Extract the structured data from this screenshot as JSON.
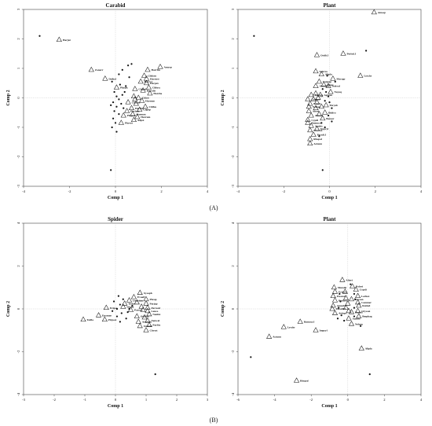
{
  "panel_labels": [
    "(A)",
    "(B)"
  ],
  "chart_data": [
    {
      "type": "scatter",
      "title": "Carabid",
      "xlabel": "Comp 1",
      "ylabel": "Comp 2",
      "xlim": [
        -4,
        4
      ],
      "ylim": [
        -3,
        3
      ],
      "xticks": [
        -4,
        -2,
        0,
        2,
        4
      ],
      "yticks": [
        -3,
        -2,
        -1,
        0,
        1,
        2,
        3
      ],
      "grid": false,
      "labeled_points": [
        {
          "label": "Harjur",
          "x": -2.45,
          "y": 1.97
        },
        {
          "label": "Zonarr",
          "x": -1.05,
          "y": 0.95
        },
        {
          "label": "Dolhol",
          "x": -0.45,
          "y": 0.65
        },
        {
          "label": "Phypic",
          "x": 0.05,
          "y": 0.35
        },
        {
          "label": "Amosp",
          "x": 1.95,
          "y": 1.05
        },
        {
          "label": "Harrfin",
          "x": 1.4,
          "y": 0.95
        },
        {
          "label": "Clidom",
          "x": 1.25,
          "y": 0.75
        },
        {
          "label": "Harrust",
          "x": 1.35,
          "y": 0.65
        },
        {
          "label": "Harrvi",
          "x": 1.1,
          "y": 0.55
        },
        {
          "label": "Harpav",
          "x": 1.35,
          "y": 0.5
        },
        {
          "label": "Clifusc",
          "x": 1.45,
          "y": 0.35
        },
        {
          "label": "Chlpal",
          "x": 0.85,
          "y": 0.3
        },
        {
          "label": "Harrdis",
          "x": 1.2,
          "y": 0.25
        },
        {
          "label": "Harcha",
          "x": 1.5,
          "y": 0.15
        },
        {
          "label": "Chlcir",
          "x": 1.0,
          "y": 0.0
        },
        {
          "label": "Harmus",
          "x": 1.15,
          "y": -0.1
        },
        {
          "label": "Clibom",
          "x": 0.55,
          "y": -0.15
        },
        {
          "label": "Chlfus",
          "x": 1.3,
          "y": -0.3
        },
        {
          "label": "Harlim",
          "x": 0.7,
          "y": -0.35
        },
        {
          "label": "Clipep",
          "x": 1.05,
          "y": -0.4
        },
        {
          "label": "Phylum",
          "x": 0.5,
          "y": -0.45
        },
        {
          "label": "Harmen",
          "x": 0.75,
          "y": -0.55
        },
        {
          "label": "Phypcu",
          "x": 0.35,
          "y": -0.6
        },
        {
          "label": "Harrum",
          "x": 0.95,
          "y": -0.65
        },
        {
          "label": "Adpsi",
          "x": 0.8,
          "y": -0.75
        },
        {
          "label": "Phover",
          "x": 0.25,
          "y": -0.85
        },
        {
          "label": "",
          "x": 0.8,
          "y": 0.05
        },
        {
          "label": "",
          "x": 0.85,
          "y": -0.05
        },
        {
          "label": "",
          "x": 0.9,
          "y": -0.2
        }
      ],
      "unlabeled_points": [
        {
          "x": -3.3,
          "y": 2.1
        },
        {
          "x": -0.2,
          "y": -2.45
        },
        {
          "x": 0.55,
          "y": 1.1
        },
        {
          "x": 0.7,
          "y": 1.15
        },
        {
          "x": 0.3,
          "y": 0.95
        },
        {
          "x": 0.15,
          "y": 0.8
        },
        {
          "x": 0.6,
          "y": 0.7
        },
        {
          "x": -0.15,
          "y": 0.55
        },
        {
          "x": 0.2,
          "y": 0.45
        },
        {
          "x": 0.45,
          "y": 0.4
        },
        {
          "x": -0.05,
          "y": 0.2
        },
        {
          "x": 0.3,
          "y": 0.1
        },
        {
          "x": 0.05,
          "y": 0.05
        },
        {
          "x": 0.15,
          "y": -0.05
        },
        {
          "x": -0.1,
          "y": -0.15
        },
        {
          "x": 0.25,
          "y": -0.2
        },
        {
          "x": 0.05,
          "y": -0.3
        },
        {
          "x": -0.05,
          "y": -0.45
        },
        {
          "x": 0.15,
          "y": -0.55
        },
        {
          "x": -0.1,
          "y": -0.7
        },
        {
          "x": 0.0,
          "y": -0.85
        },
        {
          "x": -0.15,
          "y": -1.0
        },
        {
          "x": 0.05,
          "y": -1.15
        },
        {
          "x": 0.35,
          "y": -0.35
        },
        {
          "x": 0.4,
          "y": 0.2
        },
        {
          "x": -0.2,
          "y": -0.25
        }
      ]
    },
    {
      "type": "scatter",
      "title": "Plant",
      "xlabel": "Comp 1",
      "ylabel": "Comp 2",
      "xlim": [
        -4,
        4
      ],
      "ylim": [
        -3,
        3
      ],
      "xticks": [
        -4,
        -2,
        0,
        2,
        4
      ],
      "yticks": [
        -3,
        -2,
        -1,
        0,
        1,
        2,
        3
      ],
      "grid": false,
      "labeled_points": [
        {
          "label": "Amosp",
          "x": 1.95,
          "y": 2.9
        },
        {
          "label": "Ostilt.I",
          "x": -0.55,
          "y": 1.45
        },
        {
          "label": "Perlyd.I",
          "x": 0.6,
          "y": 1.5
        },
        {
          "label": "Lyschr",
          "x": 1.35,
          "y": 0.75
        },
        {
          "label": "Sphrus",
          "x": -0.6,
          "y": 0.9
        },
        {
          "label": "Alipla",
          "x": -0.35,
          "y": 0.8
        },
        {
          "label": "Myragr",
          "x": 0.15,
          "y": 0.65
        },
        {
          "label": "Vanpap",
          "x": -0.45,
          "y": 0.55
        },
        {
          "label": "Amsuhd",
          "x": -0.6,
          "y": 0.4
        },
        {
          "label": "Eleac",
          "x": -0.25,
          "y": 0.45
        },
        {
          "label": "Dokval",
          "x": -0.05,
          "y": 0.4
        },
        {
          "label": "Nayaq",
          "x": 0.05,
          "y": 0.2
        },
        {
          "label": "Perhyp",
          "x": -0.8,
          "y": 0.1
        },
        {
          "label": "Agrcan",
          "x": -0.4,
          "y": 0.1
        },
        {
          "label": "Cynbac",
          "x": -0.95,
          "y": -0.05
        },
        {
          "label": "Polavi",
          "x": -0.85,
          "y": -0.2
        },
        {
          "label": "Nelnuc",
          "x": -0.9,
          "y": -0.3
        },
        {
          "label": "Peryab",
          "x": -0.15,
          "y": -0.25
        },
        {
          "label": "Alteri",
          "x": -0.9,
          "y": -0.45
        },
        {
          "label": "Bidfro",
          "x": -0.2,
          "y": -0.5
        },
        {
          "label": "Amsell",
          "x": -0.8,
          "y": -0.6
        },
        {
          "label": "Cypdi",
          "x": -0.95,
          "y": -0.75
        },
        {
          "label": "Bonser",
          "x": -0.3,
          "y": -0.7
        },
        {
          "label": "Rumocr.I",
          "x": -0.95,
          "y": -0.85
        },
        {
          "label": "Agabis",
          "x": -0.8,
          "y": -0.95
        },
        {
          "label": "Impcyl",
          "x": -0.55,
          "y": -1.05
        },
        {
          "label": "Oryssat",
          "x": -0.85,
          "y": -1.1
        },
        {
          "label": "Passdi.I",
          "x": -0.7,
          "y": -1.25
        },
        {
          "label": "Rhopal",
          "x": -0.85,
          "y": -1.4
        },
        {
          "label": "Actunn",
          "x": -0.85,
          "y": -1.55
        },
        {
          "label": "",
          "x": -0.6,
          "y": 0.15
        },
        {
          "label": "",
          "x": -0.5,
          "y": 0.0
        },
        {
          "label": "",
          "x": -0.55,
          "y": -0.15
        },
        {
          "label": "",
          "x": -0.6,
          "y": -0.35
        },
        {
          "label": "",
          "x": -0.45,
          "y": -0.55
        },
        {
          "label": "",
          "x": -0.7,
          "y": -0.05
        },
        {
          "label": "",
          "x": -0.35,
          "y": -0.3
        }
      ],
      "unlabeled_points": [
        {
          "x": -3.3,
          "y": 2.1
        },
        {
          "x": 1.6,
          "y": 1.6
        },
        {
          "x": -0.3,
          "y": -2.45
        },
        {
          "x": -0.1,
          "y": 0.75
        },
        {
          "x": 0.25,
          "y": 0.55
        },
        {
          "x": -0.3,
          "y": 0.3
        },
        {
          "x": -0.05,
          "y": 0.05
        },
        {
          "x": -0.2,
          "y": -0.1
        },
        {
          "x": 0.1,
          "y": -0.35
        },
        {
          "x": -0.05,
          "y": -0.6
        },
        {
          "x": -0.35,
          "y": -0.85
        },
        {
          "x": -0.2,
          "y": -1.0
        },
        {
          "x": -0.45,
          "y": -1.3
        },
        {
          "x": 0.0,
          "y": -0.15
        },
        {
          "x": -0.15,
          "y": 0.2
        },
        {
          "x": 0.1,
          "y": -0.8
        }
      ]
    },
    {
      "type": "scatter",
      "title": "Spider",
      "xlabel": "Comp 1",
      "ylabel": "Comp 2",
      "xlim": [
        -3,
        3
      ],
      "ylim": [
        -4,
        4
      ],
      "xticks": [
        -3,
        -2,
        -1,
        0,
        1,
        2,
        3
      ],
      "yticks": [
        -4,
        -2,
        0,
        2,
        4
      ],
      "grid": false,
      "labeled_points": [
        {
          "label": "Xysaph",
          "x": 0.8,
          "y": 0.75
        },
        {
          "label": "Evaaff",
          "x": 0.6,
          "y": 0.55
        },
        {
          "label": "Oxyrhim",
          "x": 0.45,
          "y": 0.4
        },
        {
          "label": "Phcap",
          "x": 1.0,
          "y": 0.45
        },
        {
          "label": "Parjap",
          "x": 1.0,
          "y": 0.25
        },
        {
          "label": "Tetlos",
          "x": 0.3,
          "y": 0.25
        },
        {
          "label": "Sticha",
          "x": 0.25,
          "y": 0.1
        },
        {
          "label": "Parrotd",
          "x": 1.05,
          "y": 0.05
        },
        {
          "label": "Leuco",
          "x": 1.05,
          "y": -0.1
        },
        {
          "label": "Erigor",
          "x": -0.3,
          "y": 0.05
        },
        {
          "label": "Paroob",
          "x": 0.5,
          "y": -0.05
        },
        {
          "label": "Nenbic",
          "x": 1.1,
          "y": -0.25
        },
        {
          "label": "Enomae",
          "x": -0.55,
          "y": -0.3
        },
        {
          "label": "Odolon",
          "x": 0.7,
          "y": -0.35
        },
        {
          "label": "Pirpost",
          "x": -0.35,
          "y": -0.5
        },
        {
          "label": "Nenwel",
          "x": 1.05,
          "y": -0.55
        },
        {
          "label": "Argamu",
          "x": 0.75,
          "y": -0.6
        },
        {
          "label": "Pariba",
          "x": 1.1,
          "y": -0.75
        },
        {
          "label": "Uminth",
          "x": 0.8,
          "y": -0.8
        },
        {
          "label": "Tetfla",
          "x": -1.05,
          "y": -0.5
        },
        {
          "label": "Chrsat",
          "x": 1.0,
          "y": -1.0
        },
        {
          "label": "",
          "x": 0.85,
          "y": 0.1
        },
        {
          "label": "",
          "x": 0.9,
          "y": -0.05
        },
        {
          "label": "",
          "x": 0.95,
          "y": -0.4
        },
        {
          "label": "",
          "x": 0.7,
          "y": 0.3
        }
      ],
      "unlabeled_points": [
        {
          "x": 1.3,
          "y": -3.05
        },
        {
          "x": 0.1,
          "y": 0.6
        },
        {
          "x": -0.05,
          "y": 0.35
        },
        {
          "x": 0.15,
          "y": 0.2
        },
        {
          "x": 0.05,
          "y": 0.0
        },
        {
          "x": -0.1,
          "y": -0.1
        },
        {
          "x": 0.2,
          "y": -0.2
        },
        {
          "x": 0.05,
          "y": -0.35
        },
        {
          "x": 0.35,
          "y": -0.45
        },
        {
          "x": 0.55,
          "y": 0.15
        },
        {
          "x": 0.4,
          "y": -0.15
        },
        {
          "x": 0.25,
          "y": 0.45
        },
        {
          "x": 0.15,
          "y": -0.6
        },
        {
          "x": 0.45,
          "y": 0.0
        }
      ]
    },
    {
      "type": "scatter",
      "title": "Plant",
      "xlabel": "Comp 1",
      "ylabel": "Comp 2",
      "xlim": [
        -6,
        4
      ],
      "ylim": [
        -4,
        4
      ],
      "xticks": [
        -6,
        -4,
        -2,
        0,
        2,
        4
      ],
      "yticks": [
        -4,
        -2,
        0,
        2,
        4
      ],
      "grid": false,
      "labeled_points": [
        {
          "label": "Alteri",
          "x": -0.3,
          "y": 1.35
        },
        {
          "label": "Polavi",
          "x": 0.25,
          "y": 1.05
        },
        {
          "label": "Murolli",
          "x": -0.75,
          "y": 1.0
        },
        {
          "label": "Cypdi",
          "x": 0.45,
          "y": 0.9
        },
        {
          "label": "Echcru",
          "x": -0.7,
          "y": 0.8
        },
        {
          "label": "Lerhex",
          "x": 0.55,
          "y": 0.6
        },
        {
          "label": "Passnol",
          "x": -0.8,
          "y": 0.6
        },
        {
          "label": "Dacsan",
          "x": 0.2,
          "y": 0.45
        },
        {
          "label": "Perhyd.I",
          "x": -0.7,
          "y": 0.4
        },
        {
          "label": "Commer",
          "x": 0.55,
          "y": 0.3
        },
        {
          "label": "Amsubl",
          "x": -0.8,
          "y": 0.15
        },
        {
          "label": "Rotind",
          "x": 0.6,
          "y": 0.15
        },
        {
          "label": "Passdil.I",
          "x": -0.85,
          "y": 0.0
        },
        {
          "label": "Oryssat",
          "x": 0.55,
          "y": -0.1
        },
        {
          "label": "Perlyd",
          "x": 0.2,
          "y": -0.15
        },
        {
          "label": "Atdepr",
          "x": -0.7,
          "y": -0.2
        },
        {
          "label": "Bmphag",
          "x": 0.6,
          "y": -0.35
        },
        {
          "label": "Amsell",
          "x": 0.05,
          "y": -0.45
        },
        {
          "label": "Rumocr.I",
          "x": -2.6,
          "y": -0.6
        },
        {
          "label": "Nelnuc",
          "x": 0.2,
          "y": -0.7
        },
        {
          "label": "Lyschr",
          "x": -3.5,
          "y": -0.85
        },
        {
          "label": "Impcyl",
          "x": -1.75,
          "y": -1.0
        },
        {
          "label": "Actunn",
          "x": -4.3,
          "y": -1.3
        },
        {
          "label": "Alipla",
          "x": 0.75,
          "y": -1.85
        },
        {
          "label": "Rhopal",
          "x": -2.8,
          "y": -3.35
        },
        {
          "label": "",
          "x": -0.1,
          "y": 0.5
        },
        {
          "label": "",
          "x": 0.0,
          "y": 0.25
        },
        {
          "label": "",
          "x": -0.1,
          "y": 0.05
        },
        {
          "label": "",
          "x": 0.05,
          "y": -0.1
        },
        {
          "label": "",
          "x": -0.15,
          "y": 0.8
        }
      ],
      "unlabeled_points": [
        {
          "x": -5.3,
          "y": -2.25
        },
        {
          "x": 1.2,
          "y": -3.05
        },
        {
          "x": -0.45,
          "y": 0.7
        },
        {
          "x": 0.35,
          "y": 0.7
        },
        {
          "x": -0.4,
          "y": 0.35
        },
        {
          "x": 0.4,
          "y": 0.45
        },
        {
          "x": -0.5,
          "y": 0.05
        },
        {
          "x": 0.35,
          "y": 0.05
        },
        {
          "x": -0.35,
          "y": -0.3
        },
        {
          "x": 0.35,
          "y": -0.35
        },
        {
          "x": 0.7,
          "y": -0.8
        },
        {
          "x": -0.2,
          "y": -0.55
        },
        {
          "x": 0.15,
          "y": 1.15
        },
        {
          "x": -0.55,
          "y": -0.45
        }
      ]
    }
  ]
}
